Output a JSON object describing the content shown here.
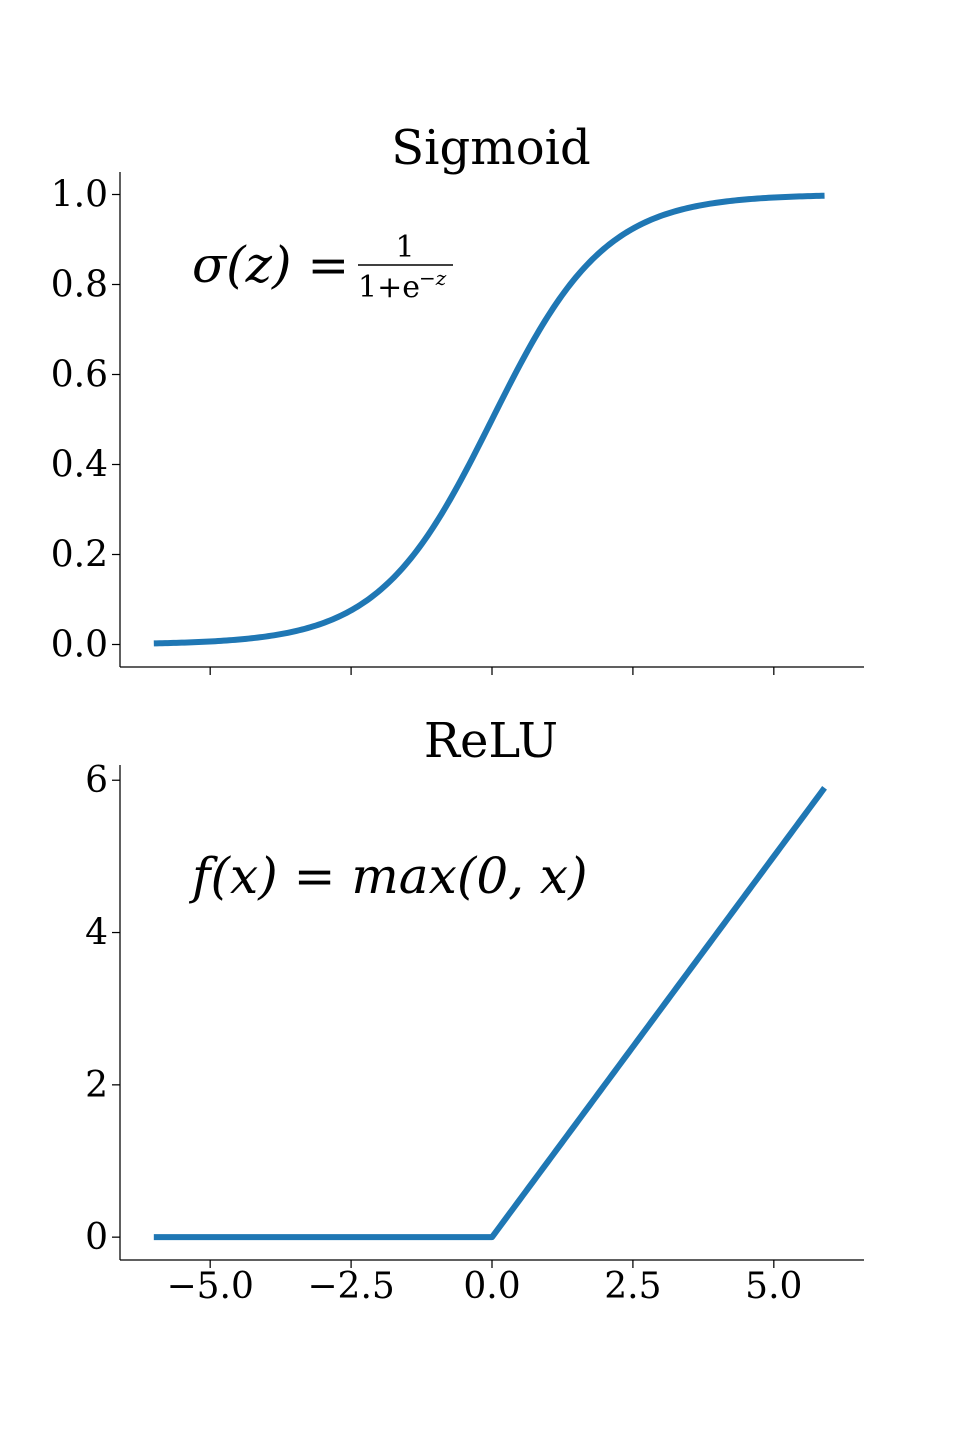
{
  "chart_data": [
    {
      "type": "line",
      "title": "Sigmoid",
      "annotation": {
        "lhs": "σ(z) =",
        "numerator": "1",
        "denominator": "1+e",
        "denominator_exponent": "−z"
      },
      "xlim": [
        -6.6,
        6.6
      ],
      "ylim": [
        -0.05,
        1.05
      ],
      "x_ticks": [
        -5.0,
        -2.5,
        0.0,
        2.5,
        5.0
      ],
      "x_tick_labels_visible": false,
      "y_ticks": [
        0.0,
        0.2,
        0.4,
        0.6,
        0.8,
        1.0
      ],
      "y_tick_labels": [
        "0.0",
        "0.2",
        "0.4",
        "0.6",
        "0.8",
        "1.0"
      ],
      "grid": false,
      "series": [
        {
          "function": "sigmoid",
          "x_range": [
            -6.0,
            5.9
          ],
          "color": "#1f77b4"
        }
      ]
    },
    {
      "type": "line",
      "title": "ReLU",
      "annotation": {
        "text": "f(x) = max(0, x)"
      },
      "xlim": [
        -6.6,
        6.6
      ],
      "ylim": [
        -0.3,
        6.2
      ],
      "x_ticks": [
        -5.0,
        -2.5,
        0.0,
        2.5,
        5.0
      ],
      "x_tick_labels": [
        "−5.0",
        "−2.5",
        "0.0",
        "2.5",
        "5.0"
      ],
      "y_ticks": [
        0,
        2,
        4,
        6
      ],
      "y_tick_labels": [
        "0",
        "2",
        "4",
        "6"
      ],
      "grid": false,
      "series": [
        {
          "function": "relu",
          "x_range": [
            -6.0,
            5.9
          ],
          "color": "#1f77b4"
        }
      ]
    }
  ]
}
